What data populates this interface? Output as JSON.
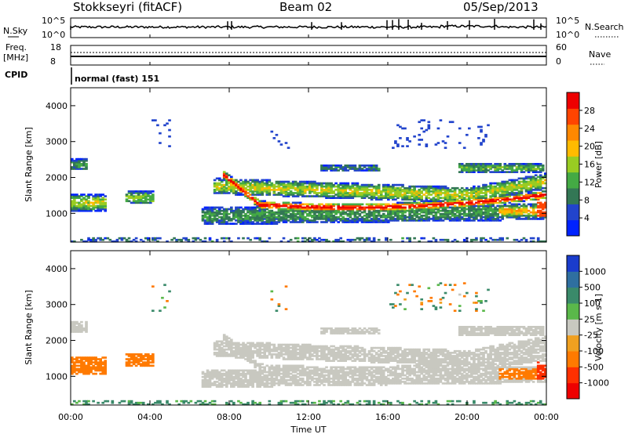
{
  "header": {
    "station": "Stokkseyri (fitACF)",
    "beam": "Beam 02",
    "date": "05/Sep/2013"
  },
  "summary_panels": {
    "nsky_label": "N.Sky",
    "nsky_ticks": [
      "10^5",
      "10^0"
    ],
    "nsearch_label": "N.Search",
    "nsearch_ticks": [
      "10^5",
      "10^0"
    ],
    "freq_label": "Freq.",
    "freq_unit": "[MHz]",
    "freq_ticks": [
      "18",
      "8"
    ],
    "nave_label": "Nave",
    "nave_ticks": [
      "60",
      "0"
    ],
    "cpid_label": "CPID",
    "cpid_value": "normal (fast) 151"
  },
  "colors": {
    "power": [
      "#0022ff",
      "#2244cc",
      "#337755",
      "#44aa44",
      "#99cc22",
      "#ffbb00",
      "#ff8800",
      "#ff4400",
      "#ee0000"
    ],
    "velocity": [
      "#1a3ccc",
      "#2f6fa0",
      "#3a8a6a",
      "#5ab84a",
      "#c8c8c0",
      "#f0a020",
      "#ff7a00",
      "#ff3000",
      "#ee0000"
    ]
  },
  "chart_data": [
    {
      "type": "heatmap",
      "panel": "power",
      "ylabel": "Slant Range [km]",
      "yticks": [
        "1000",
        "2000",
        "3000",
        "4000"
      ],
      "ylim": [
        200,
        4500
      ],
      "xlim": [
        0,
        24
      ],
      "colorbar_label": "Power [dB]",
      "colorbar_ticks": [
        "4",
        "8",
        "12",
        "16",
        "20",
        "24",
        "28"
      ],
      "colorbar_range": [
        0,
        32
      ]
    },
    {
      "type": "heatmap",
      "panel": "velocity",
      "ylabel": "Slant Range [km]",
      "yticks": [
        "1000",
        "2000",
        "3000",
        "4000"
      ],
      "ylim": [
        200,
        4500
      ],
      "xlim": [
        0,
        24
      ],
      "colorbar_label": "Velocity [m s-1]",
      "colorbar_ticks": [
        "1000",
        "500",
        "100",
        "25",
        "-25",
        "-100",
        "-500",
        "-1000"
      ]
    }
  ],
  "xaxis": {
    "label": "Time UT",
    "ticks": [
      "00:00",
      "04:00",
      "08:00",
      "12:00",
      "16:00",
      "20:00",
      "00:00"
    ],
    "tick_hours": [
      0,
      4,
      8,
      12,
      16,
      20,
      24
    ]
  }
}
